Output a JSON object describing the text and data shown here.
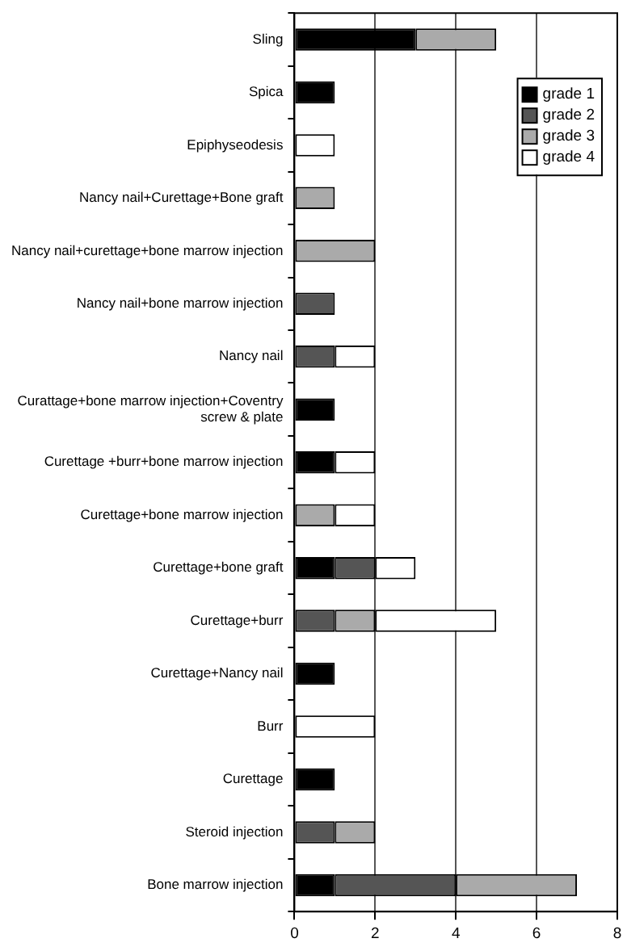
{
  "chart_data": {
    "type": "bar",
    "orientation": "horizontal",
    "stacked": true,
    "categories": [
      "Sling",
      "Spica",
      "Epiphyseodesis",
      "Nancy nail+Curettage+Bone graft",
      "Nancy nail+curettage+bone marrow injection",
      "Nancy nail+bone marrow injection",
      "Nancy nail",
      "Curattage+bone marrow injection+Coventry screw & plate",
      "Curettage +burr+bone marrow injection",
      "Curettage+bone marrow injection",
      "Curettage+bone graft",
      "Curettage+burr",
      "Curettage+Nancy nail",
      "Burr",
      "Curettage",
      "Steroid injection",
      "Bone marrow injection"
    ],
    "series": [
      {
        "name": "grade 1",
        "color": "#000000",
        "values": [
          3,
          1,
          0,
          0,
          0,
          0,
          0,
          1,
          1,
          0,
          1,
          0,
          1,
          0,
          1,
          0,
          1
        ]
      },
      {
        "name": "grade 2",
        "color": "#555555",
        "values": [
          0,
          0,
          0,
          0,
          0,
          1,
          1,
          0,
          0,
          0,
          1,
          1,
          0,
          0,
          0,
          1,
          3
        ]
      },
      {
        "name": "grade 3",
        "color": "#aaaaaa",
        "values": [
          2,
          0,
          0,
          1,
          2,
          0,
          0,
          0,
          0,
          1,
          0,
          1,
          0,
          0,
          0,
          1,
          3
        ]
      },
      {
        "name": "grade 4",
        "color": "#ffffff",
        "values": [
          0,
          0,
          1,
          0,
          0,
          0,
          1,
          0,
          1,
          1,
          1,
          3,
          0,
          2,
          0,
          0,
          0
        ]
      }
    ],
    "xlim": [
      0,
      8
    ],
    "xticks": [
      0,
      2,
      4,
      6,
      8
    ],
    "grid": "x",
    "legend": "top right"
  }
}
